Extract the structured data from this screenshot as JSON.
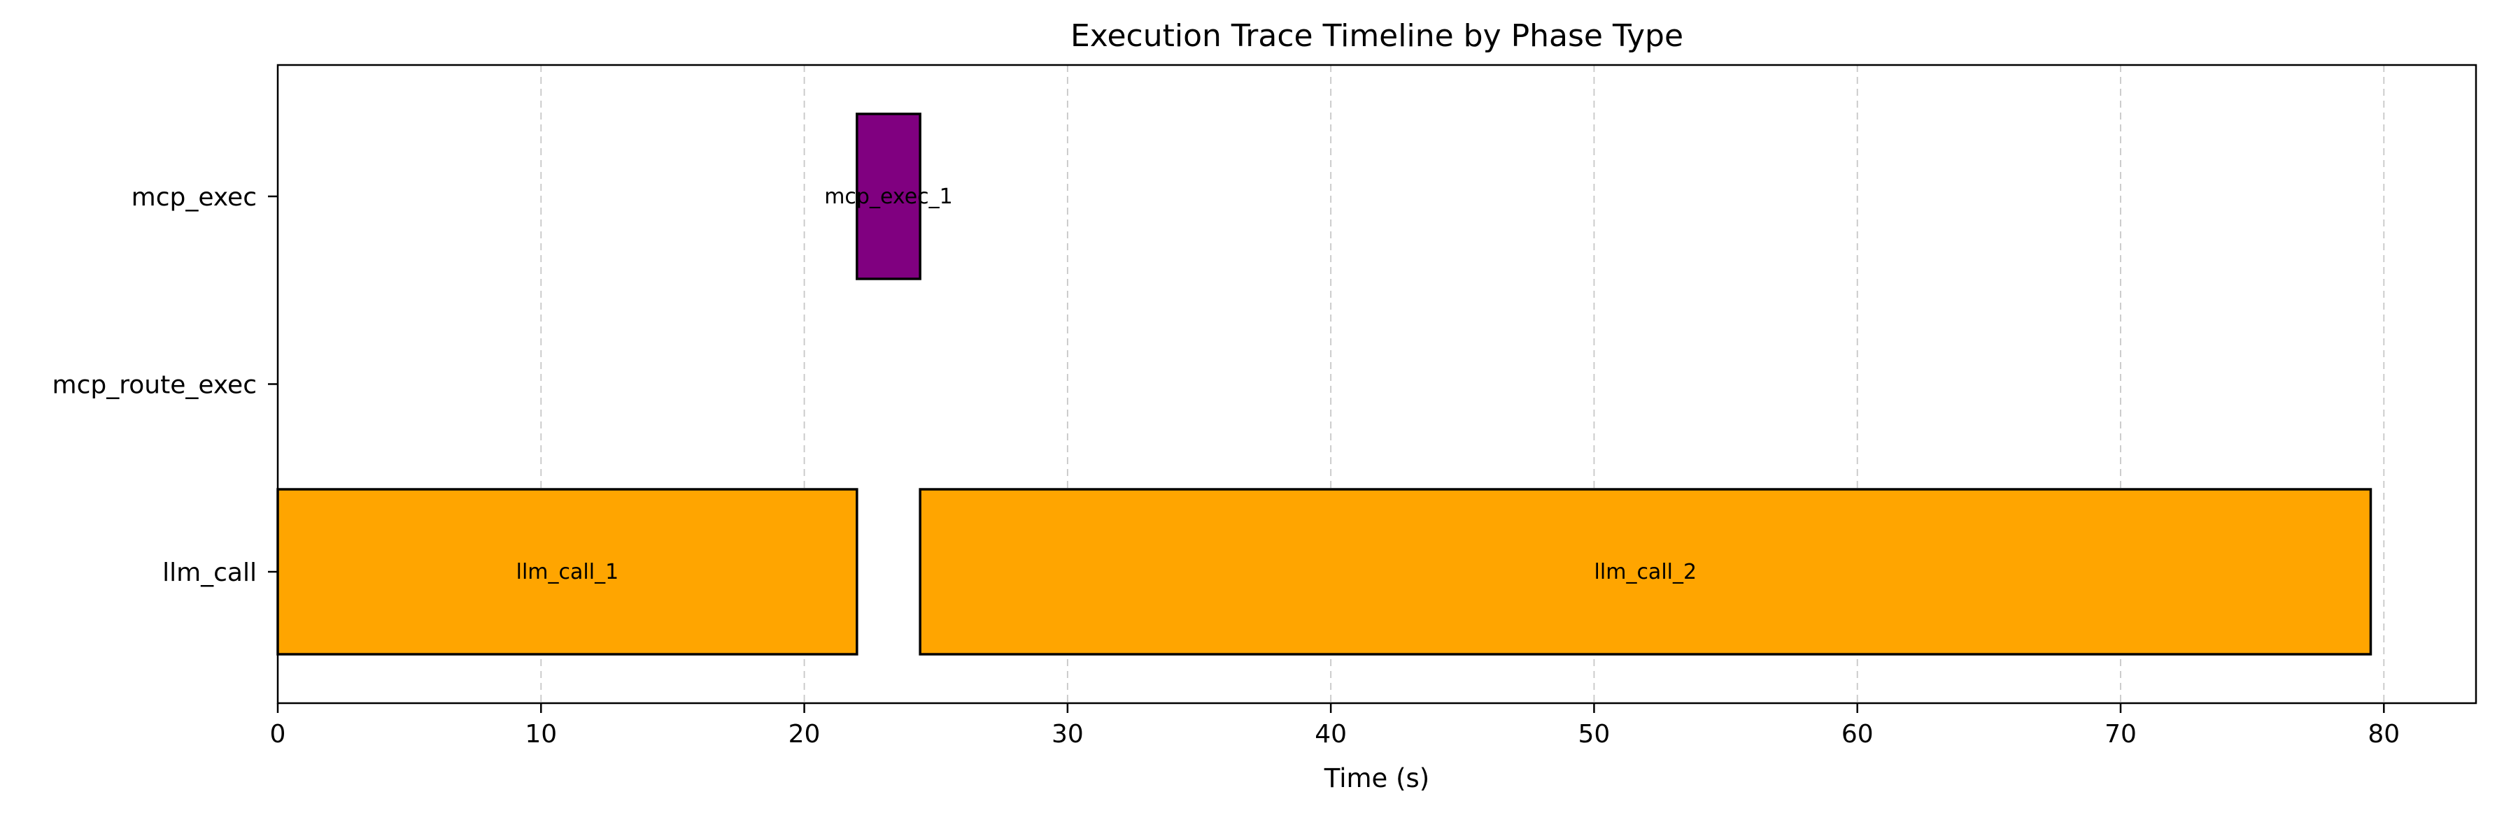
{
  "chart_data": {
    "type": "bar",
    "orientation": "horizontal",
    "title": "Execution Trace Timeline by Phase Type",
    "xlabel": "Time (s)",
    "ylabel": "",
    "xlim": [
      0,
      83.5
    ],
    "xticks": [
      0,
      10,
      20,
      30,
      40,
      50,
      60,
      70,
      80
    ],
    "categories": [
      "llm_call",
      "mcp_route_exec",
      "mcp_exec"
    ],
    "grid": {
      "x": true,
      "y": false,
      "style": "dashed"
    },
    "segments": [
      {
        "label": "llm_call_1",
        "category": "llm_call",
        "start": 0,
        "end": 22.0,
        "color": "#FFA500"
      },
      {
        "label": "llm_call_2",
        "category": "llm_call",
        "start": 24.4,
        "end": 79.5,
        "color": "#FFA500"
      },
      {
        "label": "mcp_exec_1",
        "category": "mcp_exec",
        "start": 22.0,
        "end": 24.4,
        "color": "#800080"
      }
    ]
  }
}
